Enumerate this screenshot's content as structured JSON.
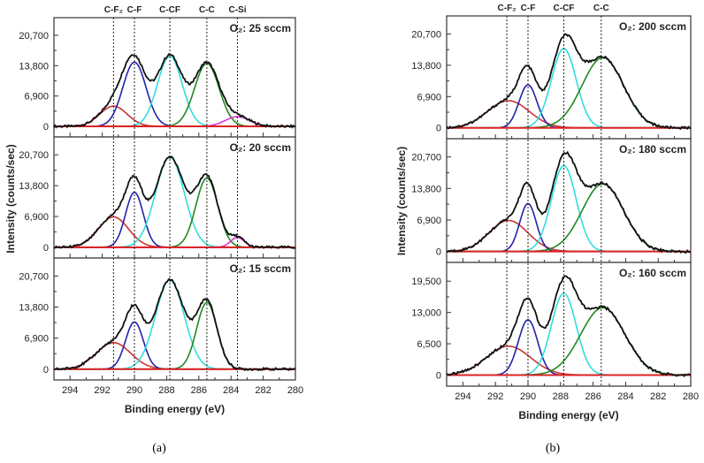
{
  "chart_data": [
    {
      "type": "line",
      "figure_label": "(a)",
      "xlabel": "Binding energy (eV)",
      "ylabel": "Intensity (counts/sec)",
      "xlim": [
        295,
        280
      ],
      "xticks": [
        "294",
        "292",
        "290",
        "288",
        "286",
        "284",
        "282",
        "280"
      ],
      "peak_labels": [
        {
          "label": "C-F₂",
          "energy": 291.3
        },
        {
          "label": "C-F",
          "energy": 290.0
        },
        {
          "label": "C-CF",
          "energy": 287.8
        },
        {
          "label": "C-C",
          "energy": 285.5
        },
        {
          "label": "C-Si",
          "energy": 283.6
        }
      ],
      "panels": [
        {
          "condition": "O₂: 25 sccm",
          "ylim": [
            -2400,
            24700
          ],
          "yticks": [
            0,
            6900,
            13800,
            20700
          ],
          "ytick_labels": [
            "0",
            "6,900",
            "13,800",
            "20,700"
          ],
          "components": [
            {
              "name": "C-F₂",
              "center": 291.3,
              "height": 4600,
              "fwhm": 2.0,
              "color": "#cc3333"
            },
            {
              "name": "C-F",
              "center": 290.0,
              "height": 14600,
              "fwhm": 1.7,
              "color": "#2222aa"
            },
            {
              "name": "C-CF",
              "center": 287.8,
              "height": 16000,
              "fwhm": 1.8,
              "color": "#33dddd"
            },
            {
              "name": "C-C",
              "center": 285.5,
              "height": 14300,
              "fwhm": 1.8,
              "color": "#228822"
            },
            {
              "name": "C-Si",
              "center": 283.6,
              "height": 2200,
              "fwhm": 1.8,
              "color": "#dd33cc"
            }
          ]
        },
        {
          "condition": "O₂: 20 sccm",
          "ylim": [
            -2400,
            24700
          ],
          "yticks": [
            0,
            6900,
            13800,
            20700
          ],
          "ytick_labels": [
            "0",
            "6,900",
            "13,800",
            "20,700"
          ],
          "components": [
            {
              "name": "C-F₂",
              "center": 291.3,
              "height": 6800,
              "fwhm": 2.2,
              "color": "#cc3333"
            },
            {
              "name": "C-F",
              "center": 290.0,
              "height": 12300,
              "fwhm": 1.3,
              "color": "#2222aa"
            },
            {
              "name": "C-CF",
              "center": 287.8,
              "height": 20200,
              "fwhm": 2.1,
              "color": "#33dddd"
            },
            {
              "name": "C-C",
              "center": 285.5,
              "height": 15500,
              "fwhm": 1.6,
              "color": "#228822"
            },
            {
              "name": "C-Si",
              "center": 283.6,
              "height": 2200,
              "fwhm": 1.0,
              "color": "#dd33cc"
            }
          ]
        },
        {
          "condition": "O₂: 15 sccm",
          "ylim": [
            -2400,
            24700
          ],
          "yticks": [
            0,
            6900,
            13800,
            20700
          ],
          "ytick_labels": [
            "0",
            "6,900",
            "13,800",
            "20,700"
          ],
          "components": [
            {
              "name": "C-F₂",
              "center": 291.3,
              "height": 5900,
              "fwhm": 2.5,
              "color": "#cc3333"
            },
            {
              "name": "C-F",
              "center": 290.0,
              "height": 10500,
              "fwhm": 1.3,
              "color": "#2222aa"
            },
            {
              "name": "C-CF",
              "center": 287.8,
              "height": 19800,
              "fwhm": 2.1,
              "color": "#33dddd"
            },
            {
              "name": "C-C",
              "center": 285.5,
              "height": 14800,
              "fwhm": 1.5,
              "color": "#228822"
            }
          ]
        }
      ]
    },
    {
      "type": "line",
      "figure_label": "(b)",
      "xlabel": "Binding energy (eV)",
      "ylabel": "Intensity (counts/sec)",
      "xlim": [
        295,
        280
      ],
      "xticks": [
        "294",
        "292",
        "290",
        "288",
        "286",
        "284",
        "282",
        "280"
      ],
      "peak_labels": [
        {
          "label": "C-F₂",
          "energy": 291.3
        },
        {
          "label": "C-F",
          "energy": 290.0
        },
        {
          "label": "C-CF",
          "energy": 287.8
        },
        {
          "label": "C-C",
          "energy": 285.5
        }
      ],
      "panels": [
        {
          "condition": "O₂: 200 sccm",
          "ylim": [
            -2400,
            24700
          ],
          "yticks": [
            0,
            6900,
            13800,
            20700
          ],
          "ytick_labels": [
            "0",
            "6,900",
            "13,800",
            "20,700"
          ],
          "components": [
            {
              "name": "C-F₂",
              "center": 291.2,
              "height": 6000,
              "fwhm": 3.0,
              "color": "#cc3333"
            },
            {
              "name": "C-F",
              "center": 290.0,
              "height": 9500,
              "fwhm": 1.3,
              "color": "#2222aa"
            },
            {
              "name": "C-CF",
              "center": 287.8,
              "height": 17500,
              "fwhm": 1.8,
              "color": "#33dddd"
            },
            {
              "name": "C-C",
              "center": 285.4,
              "height": 15500,
              "fwhm": 3.0,
              "color": "#228822"
            }
          ]
        },
        {
          "condition": "O₂: 180 sccm",
          "ylim": [
            -2400,
            24700
          ],
          "yticks": [
            0,
            6900,
            13800,
            20700
          ],
          "ytick_labels": [
            "0",
            "6,900",
            "13,800",
            "20,700"
          ],
          "components": [
            {
              "name": "C-F₂",
              "center": 291.2,
              "height": 6800,
              "fwhm": 2.8,
              "color": "#cc3333"
            },
            {
              "name": "C-F",
              "center": 290.0,
              "height": 10500,
              "fwhm": 1.2,
              "color": "#2222aa"
            },
            {
              "name": "C-CF",
              "center": 287.8,
              "height": 18800,
              "fwhm": 1.8,
              "color": "#33dddd"
            },
            {
              "name": "C-C",
              "center": 285.4,
              "height": 14800,
              "fwhm": 3.0,
              "color": "#228822"
            }
          ]
        },
        {
          "condition": "O₂: 160 sccm",
          "ylim": [
            -2300,
            23400
          ],
          "yticks": [
            0,
            6500,
            13000,
            19500
          ],
          "ytick_labels": [
            "0",
            "6,500",
            "13,000",
            "19,500"
          ],
          "components": [
            {
              "name": "C-F₂",
              "center": 291.2,
              "height": 6000,
              "fwhm": 3.2,
              "color": "#cc3333"
            },
            {
              "name": "C-F",
              "center": 290.0,
              "height": 11500,
              "fwhm": 1.4,
              "color": "#2222aa"
            },
            {
              "name": "C-CF",
              "center": 287.8,
              "height": 17000,
              "fwhm": 1.8,
              "color": "#33dddd"
            },
            {
              "name": "C-C",
              "center": 285.4,
              "height": 14000,
              "fwhm": 3.2,
              "color": "#228822"
            }
          ]
        }
      ]
    }
  ]
}
